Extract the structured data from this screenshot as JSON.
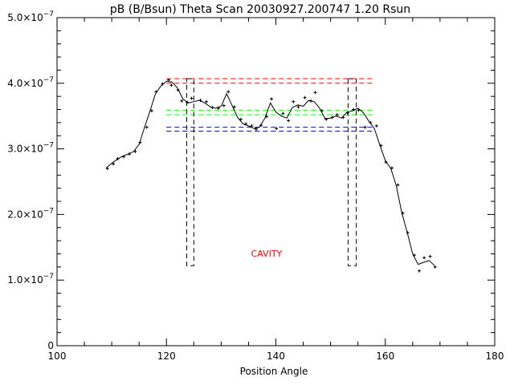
{
  "chart_data": {
    "type": "line",
    "title": "pB (B/Bsun) Theta Scan 20030927.200747 1.20 Rsun",
    "xlabel": "Position Angle",
    "ylabel": "",
    "xlim": [
      100,
      180
    ],
    "ylim": [
      0,
      5e-07
    ],
    "x_ticks": [
      {
        "value": 100,
        "label": "100"
      },
      {
        "value": 120,
        "label": "120"
      },
      {
        "value": 140,
        "label": "140"
      },
      {
        "value": 160,
        "label": "160"
      },
      {
        "value": 180,
        "label": "180"
      }
    ],
    "y_ticks": [
      {
        "value": 0,
        "label": "0"
      },
      {
        "value": 1e-07,
        "mantissa": "1.0",
        "label": "1.0×10",
        "exponent": "−7"
      },
      {
        "value": 2e-07,
        "mantissa": "2.0",
        "label": "2.0×10",
        "exponent": "−7"
      },
      {
        "value": 3e-07,
        "mantissa": "3.0",
        "label": "3.0×10",
        "exponent": "−7"
      },
      {
        "value": 4e-07,
        "mantissa": "4.0",
        "label": "4.0×10",
        "exponent": "−7"
      },
      {
        "value": 5e-07,
        "mantissa": "5.0",
        "label": "5.0×10",
        "exponent": "−7"
      }
    ],
    "grid": false,
    "series": [
      {
        "name": "",
        "style": "line",
        "color": "#000000",
        "x": [
          109,
          110,
          111,
          112,
          113,
          114,
          115,
          116,
          117,
          118,
          119,
          120,
          121,
          122,
          123,
          124,
          125,
          126,
          127,
          128,
          129,
          130,
          131,
          132,
          133,
          134,
          135,
          136,
          137,
          138,
          139,
          140,
          141,
          142,
          143,
          144,
          145,
          146,
          147,
          148,
          149,
          150,
          151,
          152,
          153,
          154,
          155,
          156,
          157,
          158,
          159,
          160,
          161,
          162,
          163,
          164,
          165,
          166,
          167,
          168,
          169
        ],
        "y": [
          2.71e-07,
          2.78e-07,
          2.84e-07,
          2.89e-07,
          2.92e-07,
          2.96e-07,
          3.07e-07,
          3.33e-07,
          3.58e-07,
          3.84e-07,
          3.96e-07,
          4.03e-07,
          4.02e-07,
          3.93e-07,
          3.76e-07,
          3.7e-07,
          3.72e-07,
          3.74e-07,
          3.7e-07,
          3.64e-07,
          3.62e-07,
          3.65e-07,
          3.84e-07,
          3.66e-07,
          3.48e-07,
          3.38e-07,
          3.35e-07,
          3.31e-07,
          3.33e-07,
          3.47e-07,
          3.7e-07,
          3.56e-07,
          3.5e-07,
          3.47e-07,
          3.63e-07,
          3.67e-07,
          3.65e-07,
          3.74e-07,
          3.72e-07,
          3.62e-07,
          3.46e-07,
          3.47e-07,
          3.5e-07,
          3.47e-07,
          3.56e-07,
          3.58e-07,
          3.62e-07,
          3.55e-07,
          3.42e-07,
          3.31e-07,
          3.06e-07,
          2.82e-07,
          2.7e-07,
          2.44e-07,
          2.03e-07,
          1.73e-07,
          1.4e-07,
          1.24e-07,
          1.27e-07,
          1.3e-07,
          1.22e-07
        ]
      },
      {
        "name": "",
        "style": "points",
        "color": "#000000",
        "x": [
          109.2,
          110.3,
          111.1,
          112.2,
          113.2,
          114.3,
          115.2,
          116.4,
          117.3,
          118.1,
          119.3,
          120.4,
          120.9,
          122.1,
          122.8,
          123.8,
          124.6,
          126.2,
          127.3,
          128.4,
          129.5,
          130.5,
          131.3,
          132.4,
          133.6,
          134.5,
          135.6,
          136.4,
          137.3,
          138.3,
          139.2,
          140.1,
          141.3,
          142.3,
          143.2,
          144.1,
          145.3,
          146.4,
          147.2,
          148.4,
          149.2,
          150.3,
          151.2,
          152.3,
          153.1,
          154.2,
          155.1,
          156.3,
          157.3,
          158.4,
          159.2,
          160.1,
          161.2,
          162.3,
          163.2,
          164.1,
          165.3,
          166.2,
          167.1,
          168.2,
          169.1
        ],
        "y": [
          2.7e-07,
          2.77e-07,
          2.85e-07,
          2.88e-07,
          2.92e-07,
          2.96e-07,
          3.1e-07,
          3.33e-07,
          3.58e-07,
          3.87e-07,
          3.99e-07,
          4.05e-07,
          3.97e-07,
          3.9e-07,
          3.73e-07,
          3.71e-07,
          3.77e-07,
          3.74e-07,
          3.72e-07,
          3.63e-07,
          3.62e-07,
          3.66e-07,
          3.87e-07,
          3.64e-07,
          3.45e-07,
          3.38e-07,
          3.35e-07,
          3.3e-07,
          3.36e-07,
          3.49e-07,
          3.76e-07,
          3.31e-07,
          3.54e-07,
          3.43e-07,
          3.72e-07,
          3.64e-07,
          3.78e-07,
          3.73e-07,
          3.86e-07,
          3.58e-07,
          3.45e-07,
          3.48e-07,
          3.52e-07,
          3.48e-07,
          3.55e-07,
          3.6e-07,
          3.59e-07,
          3.33e-07,
          3.4e-07,
          3.35e-07,
          3.05e-07,
          2.8e-07,
          2.71e-07,
          2.45e-07,
          2.02e-07,
          1.72e-07,
          1.38e-07,
          1.14e-07,
          1.34e-07,
          1.36e-07,
          1.2e-07
        ]
      }
    ],
    "reference_lines": [
      {
        "y": 4.07e-07,
        "color": "#ff0000",
        "style": "dashed"
      },
      {
        "y": 4e-07,
        "color": "#ff0000",
        "style": "dashed"
      },
      {
        "y": 3.59e-07,
        "color": "#00ff00",
        "style": "dashed"
      },
      {
        "y": 3.52e-07,
        "color": "#00ff00",
        "style": "dashed"
      },
      {
        "y": 3.33e-07,
        "color": "#0000ff",
        "style": "dashed"
      },
      {
        "y": 3.27e-07,
        "color": "#0000ff",
        "style": "dashed"
      }
    ],
    "ref_x_range": [
      120.0,
      158.0
    ],
    "boxes": [
      {
        "x0": 123.7,
        "x1": 125.0,
        "y0": 1.22e-07,
        "y1": 4.07e-07,
        "color": "#000000",
        "style": "dashed"
      },
      {
        "x0": 153.2,
        "x1": 154.7,
        "y0": 1.22e-07,
        "y1": 4.07e-07,
        "color": "#000000",
        "style": "dashed"
      }
    ],
    "annotations": [
      {
        "text": "CAVITY",
        "x": 138.3,
        "y": 1.36e-07,
        "color": "#ff0000"
      }
    ]
  }
}
